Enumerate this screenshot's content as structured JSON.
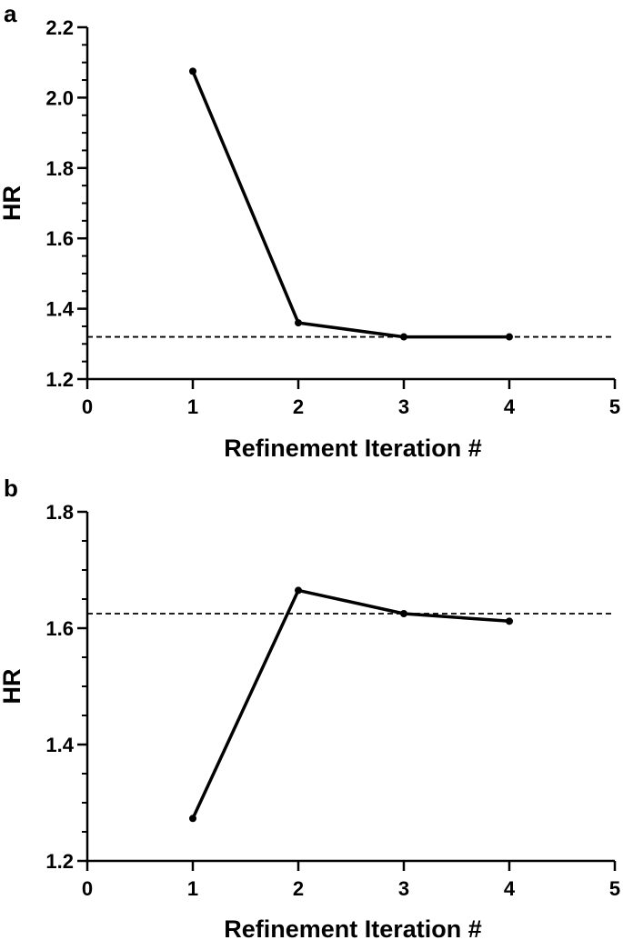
{
  "chart_data": [
    {
      "type": "line",
      "panel_label": "a",
      "xlabel": "Refinement Iteration #",
      "ylabel": "HR",
      "xlim": [
        0,
        5
      ],
      "ylim": [
        1.2,
        2.2
      ],
      "xticks": [
        "0",
        "1",
        "2",
        "3",
        "4",
        "5"
      ],
      "yticks": [
        "1.2",
        "1.4",
        "1.6",
        "1.8",
        "2.0",
        "2.2"
      ],
      "y_minor_step": 0.05,
      "grid": false,
      "reference_line": {
        "y": 1.32,
        "style": "dashed"
      },
      "series": [
        {
          "x": [
            1,
            2,
            3,
            4
          ],
          "values": [
            2.075,
            1.36,
            1.32,
            1.32
          ]
        }
      ]
    },
    {
      "type": "line",
      "panel_label": "b",
      "xlabel": "Refinement Iteration #",
      "ylabel": "HR",
      "xlim": [
        0,
        5
      ],
      "ylim": [
        1.2,
        1.8
      ],
      "xticks": [
        "0",
        "1",
        "2",
        "3",
        "4",
        "5"
      ],
      "yticks": [
        "1.2",
        "1.4",
        "1.6",
        "1.8"
      ],
      "y_minor_step": 0.05,
      "grid": false,
      "reference_line": {
        "y": 1.625,
        "style": "dashed"
      },
      "series": [
        {
          "x": [
            1,
            2,
            3,
            4
          ],
          "values": [
            1.273,
            1.665,
            1.625,
            1.612
          ]
        }
      ]
    }
  ]
}
